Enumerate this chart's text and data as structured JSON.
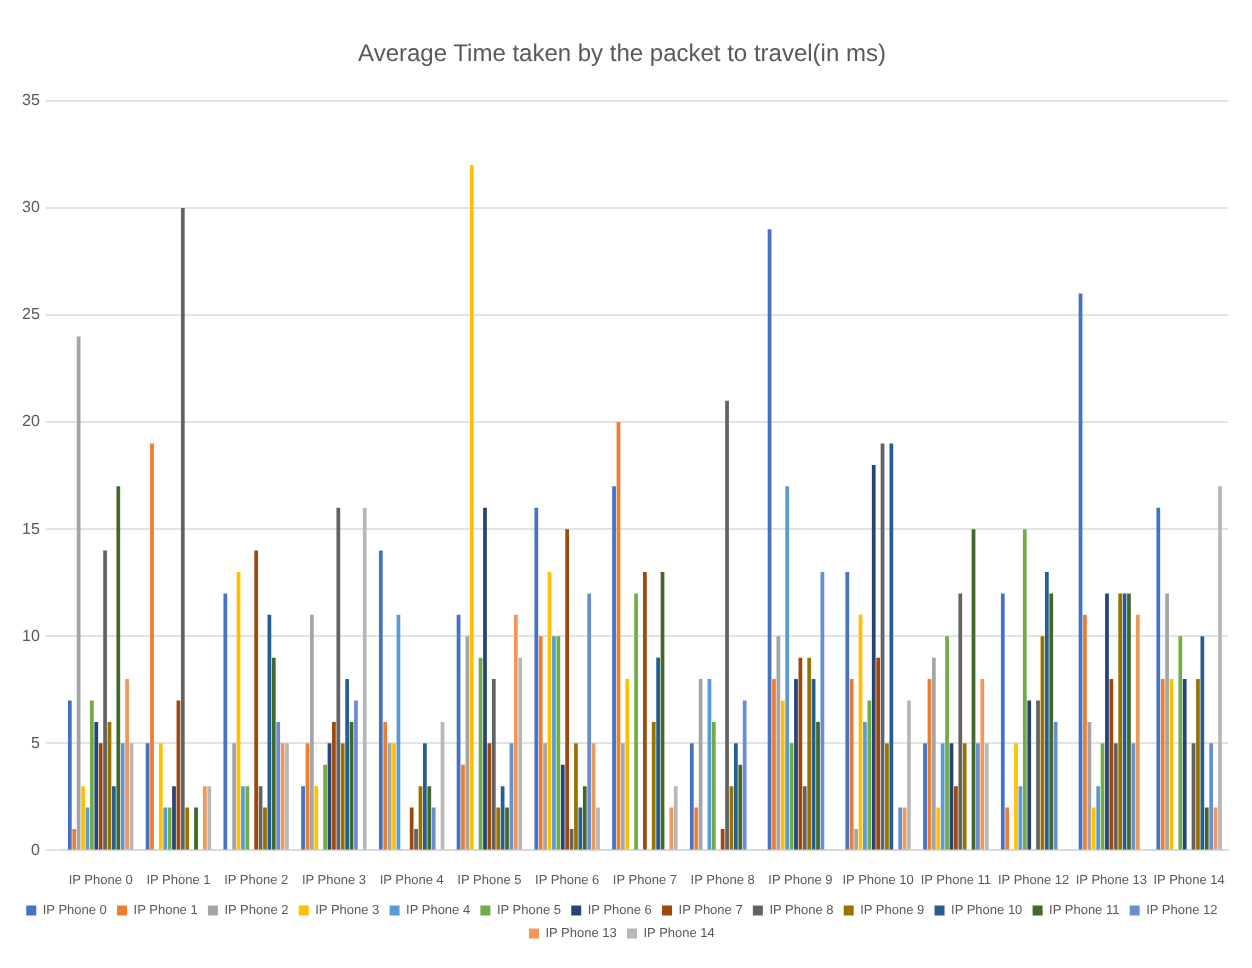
{
  "chart_data": {
    "type": "bar",
    "title": "Average Time taken by the packet to travel(in ms)",
    "categories": [
      "IP Phone 0",
      "IP Phone 1",
      "IP Phone 2",
      "IP Phone 3",
      "IP Phone 4",
      "IP Phone 5",
      "IP Phone 6",
      "IP Phone 7",
      "IP Phone 8",
      "IP Phone 9",
      "IP Phone 10",
      "IP Phone 11",
      "IP Phone 12",
      "IP Phone 13",
      "IP Phone 14"
    ],
    "series": [
      {
        "name": "IP Phone 0",
        "color": "#4472c4",
        "values": [
          7,
          5,
          12,
          3,
          14,
          11,
          16,
          17,
          5,
          29,
          13,
          5,
          12,
          26,
          16
        ]
      },
      {
        "name": "IP Phone 1",
        "color": "#ed7d31",
        "values": [
          1,
          19,
          0,
          5,
          6,
          4,
          10,
          20,
          2,
          8,
          8,
          8,
          2,
          11,
          8
        ]
      },
      {
        "name": "IP Phone 2",
        "color": "#a5a5a5",
        "values": [
          24,
          0,
          5,
          11,
          5,
          10,
          5,
          5,
          8,
          10,
          1,
          9,
          0,
          6,
          12
        ]
      },
      {
        "name": "IP Phone 3",
        "color": "#ffc000",
        "values": [
          3,
          5,
          13,
          3,
          5,
          32,
          13,
          8,
          0,
          7,
          11,
          2,
          5,
          2,
          8
        ]
      },
      {
        "name": "IP Phone 4",
        "color": "#5b9bd5",
        "values": [
          2,
          2,
          3,
          0,
          11,
          0,
          10,
          0,
          8,
          17,
          6,
          5,
          3,
          3,
          0
        ]
      },
      {
        "name": "IP Phone 5",
        "color": "#70ad47",
        "values": [
          7,
          2,
          3,
          4,
          0,
          9,
          10,
          12,
          6,
          5,
          7,
          10,
          15,
          5,
          10
        ]
      },
      {
        "name": "IP Phone 6",
        "color": "#264478",
        "values": [
          6,
          3,
          0,
          5,
          0,
          16,
          4,
          0,
          0,
          8,
          18,
          5,
          7,
          12,
          8
        ]
      },
      {
        "name": "IP Phone 7",
        "color": "#9e480e",
        "values": [
          5,
          7,
          14,
          6,
          2,
          5,
          15,
          13,
          1,
          9,
          9,
          3,
          0,
          8,
          0
        ]
      },
      {
        "name": "IP Phone 8",
        "color": "#636363",
        "values": [
          14,
          30,
          3,
          16,
          1,
          8,
          1,
          0,
          21,
          3,
          19,
          12,
          7,
          5,
          5
        ]
      },
      {
        "name": "IP Phone 9",
        "color": "#997300",
        "values": [
          6,
          2,
          2,
          5,
          3,
          2,
          5,
          6,
          3,
          9,
          5,
          5,
          10,
          12,
          8
        ]
      },
      {
        "name": "IP Phone 10",
        "color": "#255e91",
        "values": [
          3,
          0,
          11,
          8,
          5,
          3,
          2,
          9,
          5,
          8,
          19,
          0,
          13,
          12,
          10
        ]
      },
      {
        "name": "IP Phone 11",
        "color": "#43682b",
        "values": [
          17,
          2,
          9,
          6,
          3,
          2,
          3,
          13,
          4,
          6,
          0,
          15,
          12,
          12,
          2
        ]
      },
      {
        "name": "IP Phone 12",
        "color": "#698ed0",
        "values": [
          5,
          0,
          6,
          7,
          2,
          5,
          12,
          0,
          7,
          13,
          2,
          5,
          6,
          5,
          5
        ]
      },
      {
        "name": "IP Phone 13",
        "color": "#f1975a",
        "values": [
          8,
          3,
          5,
          0,
          0,
          11,
          5,
          2,
          0,
          0,
          2,
          8,
          0,
          11,
          2
        ]
      },
      {
        "name": "IP Phone 14",
        "color": "#b7b7b7",
        "values": [
          5,
          3,
          5,
          16,
          6,
          9,
          2,
          3,
          0,
          0,
          7,
          5,
          0,
          0,
          17
        ]
      }
    ],
    "ylim": [
      0,
      35
    ],
    "yticks": [
      0,
      5,
      10,
      15,
      20,
      25,
      30,
      35
    ],
    "grid": "y",
    "legend": "bottom"
  }
}
